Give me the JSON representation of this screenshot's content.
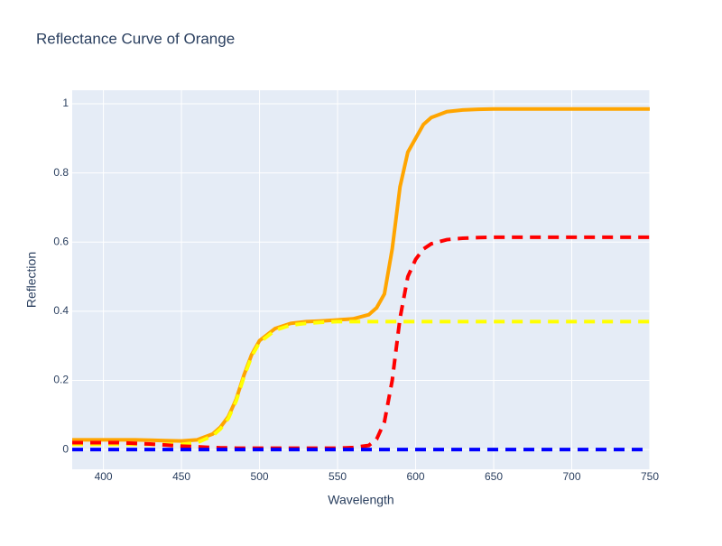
{
  "chart_data": {
    "type": "line",
    "title": "Reflectance Curve of Orange",
    "x_label": "Wavelength",
    "y_label": "Reflection",
    "x": [
      380,
      390,
      400,
      410,
      420,
      430,
      440,
      450,
      460,
      470,
      475,
      480,
      485,
      490,
      495,
      500,
      510,
      520,
      530,
      540,
      550,
      560,
      570,
      575,
      580,
      585,
      590,
      595,
      600,
      605,
      610,
      620,
      630,
      640,
      650,
      660,
      680,
      700,
      720,
      750
    ],
    "series": [
      {
        "color": "#ffa500",
        "dash": false,
        "values": [
          0.028,
          0.028,
          0.028,
          0.028,
          0.028,
          0.027,
          0.026,
          0.025,
          0.028,
          0.045,
          0.065,
          0.095,
          0.145,
          0.215,
          0.275,
          0.315,
          0.35,
          0.365,
          0.37,
          0.372,
          0.375,
          0.378,
          0.39,
          0.41,
          0.45,
          0.58,
          0.76,
          0.86,
          0.9,
          0.94,
          0.96,
          0.977,
          0.982,
          0.984,
          0.985,
          0.985,
          0.985,
          0.985,
          0.985,
          0.985
        ]
      },
      {
        "color": "#ffff00",
        "dash": true,
        "values": [
          0.015,
          0.015,
          0.015,
          0.015,
          0.015,
          0.015,
          0.015,
          0.015,
          0.02,
          0.04,
          0.06,
          0.09,
          0.14,
          0.21,
          0.27,
          0.31,
          0.345,
          0.36,
          0.365,
          0.368,
          0.37,
          0.37,
          0.37,
          0.37,
          0.37,
          0.37,
          0.37,
          0.37,
          0.37,
          0.37,
          0.37,
          0.37,
          0.37,
          0.37,
          0.37,
          0.37,
          0.37,
          0.37,
          0.37,
          0.37
        ]
      },
      {
        "color": "#ff0000",
        "dash": true,
        "values": [
          0.02,
          0.02,
          0.02,
          0.02,
          0.018,
          0.016,
          0.013,
          0.01,
          0.008,
          0.006,
          0.005,
          0.005,
          0.004,
          0.004,
          0.004,
          0.004,
          0.004,
          0.004,
          0.004,
          0.004,
          0.004,
          0.006,
          0.012,
          0.03,
          0.08,
          0.2,
          0.38,
          0.5,
          0.55,
          0.58,
          0.595,
          0.607,
          0.611,
          0.613,
          0.614,
          0.614,
          0.614,
          0.614,
          0.614,
          0.614
        ]
      },
      {
        "color": "#0000ff",
        "dash": true,
        "values": [
          0,
          0,
          0,
          0,
          0,
          0,
          0,
          0,
          0,
          0,
          0,
          0,
          0,
          0,
          0,
          0,
          0,
          0,
          0,
          0,
          0,
          0,
          0,
          0,
          0,
          0,
          0,
          0,
          0,
          0,
          0,
          0,
          0,
          0,
          0,
          0,
          0,
          0,
          0,
          0
        ]
      }
    ],
    "xlim": [
      380,
      750
    ],
    "xticks": [
      400,
      450,
      500,
      550,
      600,
      650,
      700,
      750
    ],
    "ylim": [
      -0.057,
      1.039
    ],
    "yticks": [
      0,
      0.2,
      0.4,
      0.6,
      0.8,
      1
    ],
    "grid": true
  }
}
